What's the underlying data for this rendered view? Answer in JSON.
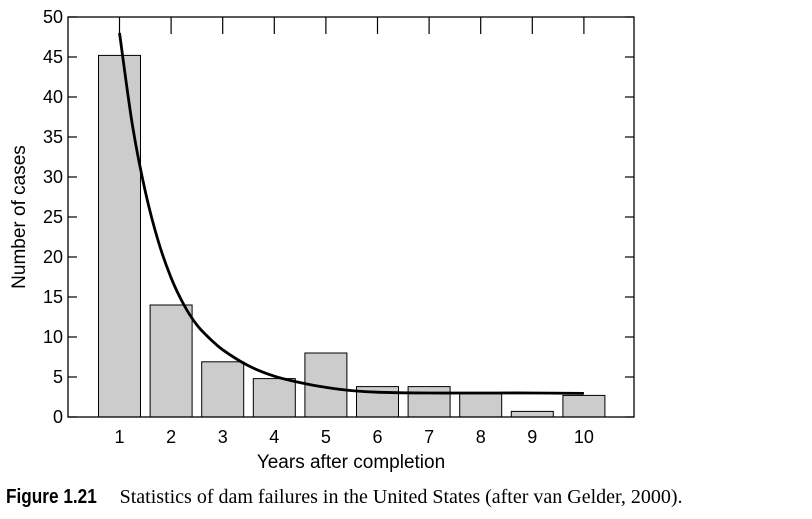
{
  "chart_data": {
    "type": "bar",
    "categories": [
      "1",
      "2",
      "3",
      "4",
      "5",
      "6",
      "7",
      "8",
      "9",
      "10"
    ],
    "values": [
      45.2,
      14,
      6.9,
      4.8,
      8,
      3.8,
      3.8,
      2.9,
      0.7,
      2.7
    ],
    "curve": {
      "x": [
        1,
        1.25,
        1.5,
        1.75,
        2,
        2.25,
        2.5,
        2.75,
        3,
        3.5,
        4,
        4.5,
        5,
        5.5,
        6,
        7,
        8,
        9,
        10
      ],
      "y": [
        48,
        36.5,
        28.2,
        22,
        17.4,
        14,
        11.5,
        9.8,
        8.4,
        6.4,
        5.1,
        4.3,
        3.7,
        3.3,
        3.1,
        3.0,
        3.0,
        3.0,
        2.95
      ]
    },
    "yticks": [
      "0",
      "5",
      "10",
      "15",
      "20",
      "25",
      "30",
      "35",
      "40",
      "45",
      "50"
    ],
    "xlabel": "Years after completion",
    "ylabel": "Number of cases",
    "ylim": [
      0,
      50
    ],
    "grid": false,
    "colors": {
      "bar_fill": "#cccccc",
      "bar_stroke": "#000000",
      "curve": "#000000"
    }
  },
  "caption": {
    "label": "Figure 1.21",
    "text": "Statistics of dam failures in the United States (after van Gelder, 2000)."
  }
}
